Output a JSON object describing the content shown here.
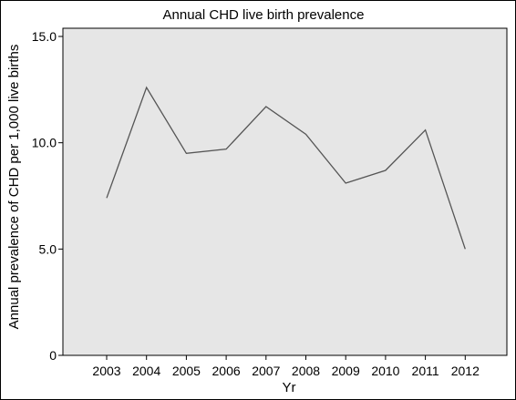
{
  "chart_data": {
    "type": "line",
    "title": "Annual CHD live birth prevalence",
    "xlabel": "Yr",
    "ylabel": "Annual prevalence of CHD per 1,000 live births",
    "x": [
      "2003",
      "2004",
      "2005",
      "2006",
      "2007",
      "2008",
      "2009",
      "2010",
      "2011",
      "2012"
    ],
    "series": [
      {
        "values": [
          7.4,
          12.6,
          9.5,
          9.7,
          11.7,
          10.4,
          8.1,
          8.7,
          10.6,
          5.0
        ]
      }
    ],
    "ylim": [
      0,
      15
    ],
    "yticks": [
      0,
      5.0,
      10.0,
      15.0
    ],
    "ytick_labels": [
      "0",
      "5.0",
      "10.0",
      "15.0"
    ],
    "grid": false,
    "legend": "none",
    "colors": {
      "plot_background": "#e6e6e6",
      "line": "#555555",
      "axis": "#000000"
    }
  }
}
